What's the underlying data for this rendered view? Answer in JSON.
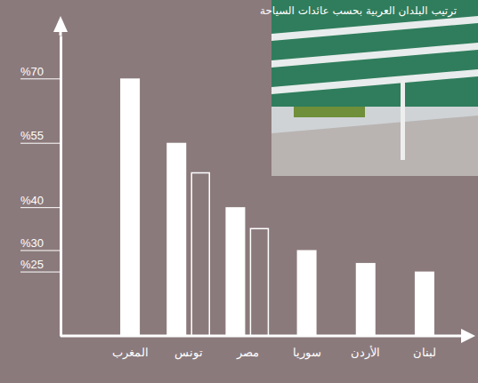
{
  "chart_data": {
    "type": "bar",
    "title": "ترتيب البلدان العربية بحسب عائدات السياحة",
    "categories": [
      "المغرب",
      "تونس",
      "مصر",
      "سوريا",
      "الأردن",
      "لبنان"
    ],
    "series": [
      {
        "color": "#ffffff",
        "values": [
          70,
          55,
          40,
          30,
          27,
          25
        ]
      },
      {
        "color": "#ffffff",
        "marker": "hollow",
        "values": [
          null,
          48,
          35,
          null,
          null,
          null
        ]
      }
    ],
    "ylim": [
      10,
      80
    ],
    "yticks": [
      {
        "value": 25,
        "label": "%25"
      },
      {
        "value": 30,
        "label": "%30"
      },
      {
        "value": 40,
        "label": "%40"
      },
      {
        "value": 55,
        "label": "%55"
      },
      {
        "value": 70,
        "label": "%70"
      }
    ],
    "grid": false
  }
}
